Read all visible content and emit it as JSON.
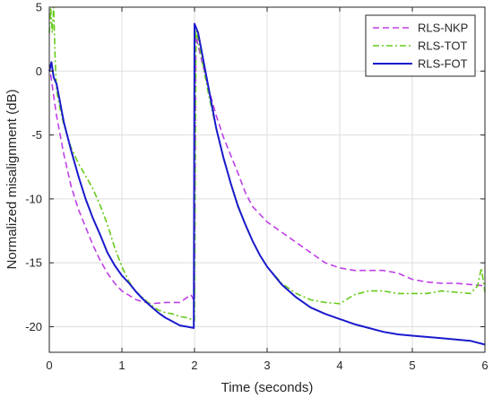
{
  "chart_data": {
    "type": "line",
    "title": "",
    "xlabel": "Time (seconds)",
    "ylabel": "Normalized misalignment (dB)",
    "xlim": [
      0,
      6
    ],
    "ylim": [
      -22,
      5
    ],
    "xticks": [
      0,
      1,
      2,
      3,
      4,
      5,
      6
    ],
    "yticks": [
      5,
      0,
      -5,
      -10,
      -15,
      -20
    ],
    "grid": true,
    "legend_position": "top-right",
    "series": [
      {
        "name": "RLS-NKP",
        "color": "#bf40e6",
        "style": "dashed",
        "points": [
          [
            0,
            0.5
          ],
          [
            0.05,
            -1.5
          ],
          [
            0.1,
            -3.5
          ],
          [
            0.2,
            -6.5
          ],
          [
            0.3,
            -9.0
          ],
          [
            0.4,
            -10.8
          ],
          [
            0.5,
            -12.2
          ],
          [
            0.6,
            -13.6
          ],
          [
            0.7,
            -14.8
          ],
          [
            0.8,
            -15.8
          ],
          [
            0.9,
            -16.6
          ],
          [
            1.0,
            -17.2
          ],
          [
            1.2,
            -17.9
          ],
          [
            1.4,
            -18.2
          ],
          [
            1.6,
            -18.1
          ],
          [
            1.8,
            -18.1
          ],
          [
            1.95,
            -17.5
          ],
          [
            2.0,
            -18.0
          ],
          [
            2.02,
            2.8
          ],
          [
            2.05,
            2.0
          ],
          [
            2.1,
            0.8
          ],
          [
            2.2,
            -1.5
          ],
          [
            2.3,
            -3.5
          ],
          [
            2.4,
            -5.2
          ],
          [
            2.5,
            -6.6
          ],
          [
            2.6,
            -8.0
          ],
          [
            2.7,
            -9.5
          ],
          [
            2.8,
            -10.6
          ],
          [
            3.0,
            -11.8
          ],
          [
            3.2,
            -12.6
          ],
          [
            3.4,
            -13.4
          ],
          [
            3.6,
            -14.2
          ],
          [
            3.8,
            -15.0
          ],
          [
            4.0,
            -15.4
          ],
          [
            4.2,
            -15.6
          ],
          [
            4.4,
            -15.6
          ],
          [
            4.6,
            -15.6
          ],
          [
            4.8,
            -15.8
          ],
          [
            5.0,
            -16.3
          ],
          [
            5.2,
            -16.5
          ],
          [
            5.4,
            -16.6
          ],
          [
            5.6,
            -16.6
          ],
          [
            5.8,
            -16.7
          ],
          [
            6.0,
            -16.8
          ]
        ]
      },
      {
        "name": "RLS-TOT",
        "color": "#66cc1a",
        "style": "dashdot",
        "points": [
          [
            0,
            3.0
          ],
          [
            0.02,
            5.0
          ],
          [
            0.04,
            3.0
          ],
          [
            0.06,
            5.0
          ],
          [
            0.08,
            1.0
          ],
          [
            0.1,
            -1.5
          ],
          [
            0.15,
            -3.0
          ],
          [
            0.2,
            -4.2
          ],
          [
            0.3,
            -6.0
          ],
          [
            0.4,
            -7.2
          ],
          [
            0.5,
            -8.2
          ],
          [
            0.6,
            -9.2
          ],
          [
            0.7,
            -10.5
          ],
          [
            0.8,
            -12.0
          ],
          [
            0.9,
            -13.8
          ],
          [
            1.0,
            -15.3
          ],
          [
            1.1,
            -16.5
          ],
          [
            1.2,
            -17.3
          ],
          [
            1.3,
            -17.8
          ],
          [
            1.4,
            -18.3
          ],
          [
            1.5,
            -18.7
          ],
          [
            1.6,
            -18.9
          ],
          [
            1.7,
            -19.0
          ],
          [
            1.8,
            -19.2
          ],
          [
            1.9,
            -19.3
          ],
          [
            2.0,
            -19.5
          ],
          [
            2.02,
            3.2
          ],
          [
            2.05,
            2.5
          ],
          [
            2.1,
            1.0
          ],
          [
            2.2,
            -2.0
          ],
          [
            2.3,
            -4.5
          ],
          [
            2.4,
            -6.8
          ],
          [
            2.5,
            -8.8
          ],
          [
            2.6,
            -10.5
          ],
          [
            2.7,
            -12.0
          ],
          [
            2.8,
            -13.3
          ],
          [
            2.9,
            -14.4
          ],
          [
            3.0,
            -15.3
          ],
          [
            3.2,
            -16.6
          ],
          [
            3.4,
            -17.4
          ],
          [
            3.6,
            -17.9
          ],
          [
            3.8,
            -18.1
          ],
          [
            4.0,
            -18.2
          ],
          [
            4.2,
            -17.5
          ],
          [
            4.4,
            -17.2
          ],
          [
            4.6,
            -17.2
          ],
          [
            4.8,
            -17.4
          ],
          [
            5.0,
            -17.4
          ],
          [
            5.2,
            -17.4
          ],
          [
            5.4,
            -17.2
          ],
          [
            5.6,
            -17.3
          ],
          [
            5.8,
            -17.4
          ],
          [
            5.9,
            -16.8
          ],
          [
            5.95,
            -15.4
          ],
          [
            6.0,
            -17.3
          ]
        ]
      },
      {
        "name": "RLS-FOT",
        "color": "#1a1acc",
        "style": "solid",
        "points": [
          [
            0,
            0.0
          ],
          [
            0.03,
            0.7
          ],
          [
            0.06,
            -0.5
          ],
          [
            0.1,
            -1.0
          ],
          [
            0.15,
            -2.5
          ],
          [
            0.2,
            -4.0
          ],
          [
            0.3,
            -6.2
          ],
          [
            0.4,
            -8.2
          ],
          [
            0.5,
            -10.0
          ],
          [
            0.6,
            -11.5
          ],
          [
            0.7,
            -12.8
          ],
          [
            0.8,
            -14.2
          ],
          [
            0.9,
            -15.2
          ],
          [
            1.0,
            -16.0
          ],
          [
            1.1,
            -16.6
          ],
          [
            1.2,
            -17.3
          ],
          [
            1.3,
            -17.9
          ],
          [
            1.4,
            -18.4
          ],
          [
            1.5,
            -18.9
          ],
          [
            1.6,
            -19.3
          ],
          [
            1.7,
            -19.6
          ],
          [
            1.8,
            -19.9
          ],
          [
            1.9,
            -20.0
          ],
          [
            1.99,
            -20.1
          ],
          [
            2.0,
            3.7
          ],
          [
            2.05,
            3.0
          ],
          [
            2.1,
            1.5
          ],
          [
            2.2,
            -1.5
          ],
          [
            2.3,
            -4.5
          ],
          [
            2.4,
            -6.8
          ],
          [
            2.5,
            -8.8
          ],
          [
            2.6,
            -10.6
          ],
          [
            2.7,
            -12.0
          ],
          [
            2.8,
            -13.3
          ],
          [
            2.9,
            -14.4
          ],
          [
            3.0,
            -15.3
          ],
          [
            3.2,
            -16.7
          ],
          [
            3.4,
            -17.7
          ],
          [
            3.6,
            -18.5
          ],
          [
            3.8,
            -19.0
          ],
          [
            4.0,
            -19.4
          ],
          [
            4.2,
            -19.8
          ],
          [
            4.4,
            -20.1
          ],
          [
            4.6,
            -20.4
          ],
          [
            4.8,
            -20.6
          ],
          [
            5.0,
            -20.7
          ],
          [
            5.2,
            -20.8
          ],
          [
            5.4,
            -20.9
          ],
          [
            5.6,
            -21.0
          ],
          [
            5.8,
            -21.1
          ],
          [
            6.0,
            -21.4
          ]
        ]
      }
    ]
  }
}
